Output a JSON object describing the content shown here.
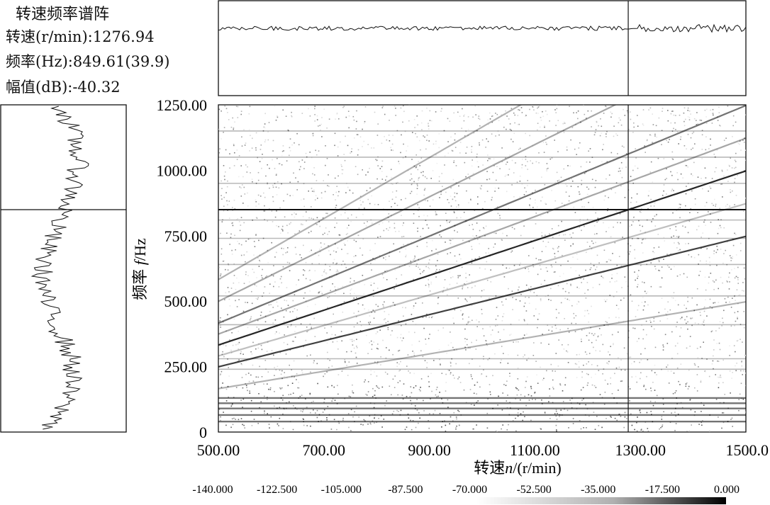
{
  "info": {
    "title": "转速频率谱阵",
    "rpm_label": "转速(r/min):1276.94",
    "freq_label": "频率(Hz):849.61(39.9)",
    "amp_label": "幅值(dB):-40.32"
  },
  "chart_data": {
    "type": "heatmap",
    "title": "转速频率谱阵",
    "xlabel": "转速n/(r/min)",
    "ylabel": "频率 f/Hz",
    "xlim": [
      500,
      1500
    ],
    "ylim": [
      0,
      1250
    ],
    "x_ticks": [
      "500.00",
      "700.00",
      "900.00",
      "1100.00",
      "1300.00",
      "1500.0"
    ],
    "x_tick_values": [
      500,
      700,
      900,
      1100,
      1300,
      1500
    ],
    "y_ticks": [
      "0",
      "250.00",
      "500.00",
      "750.00",
      "1000.00",
      "1250.00"
    ],
    "y_tick_values": [
      0,
      250,
      500,
      750,
      1000,
      1250
    ],
    "cursor": {
      "rpm": 1276.94,
      "freq_hz": 849.61,
      "order": 39.9,
      "amplitude_db": -40.32
    },
    "colorbar": {
      "ticks": [
        "-140.000",
        "-122.500",
        "-105.000",
        "-87.500",
        "-70.000",
        "-52.500",
        "-35.000",
        "-17.500",
        "0.000"
      ],
      "range_db": [
        -140,
        0
      ]
    },
    "order_lines": [
      {
        "order": 39.9,
        "intensity": 0.85
      },
      {
        "order": 29.9,
        "intensity": 0.75
      },
      {
        "order": 49.9,
        "intensity": 0.55
      },
      {
        "order": 44.9,
        "intensity": 0.35
      },
      {
        "order": 59.9,
        "intensity": 0.35
      },
      {
        "order": 69.9,
        "intensity": 0.3
      },
      {
        "order": 19.9,
        "intensity": 0.3
      },
      {
        "order": 34.9,
        "intensity": 0.25
      }
    ],
    "fixed_lines_hz": [
      40,
      65,
      90,
      110,
      130,
      240,
      280,
      410,
      520,
      640,
      740,
      810,
      950,
      1050,
      1150
    ]
  }
}
